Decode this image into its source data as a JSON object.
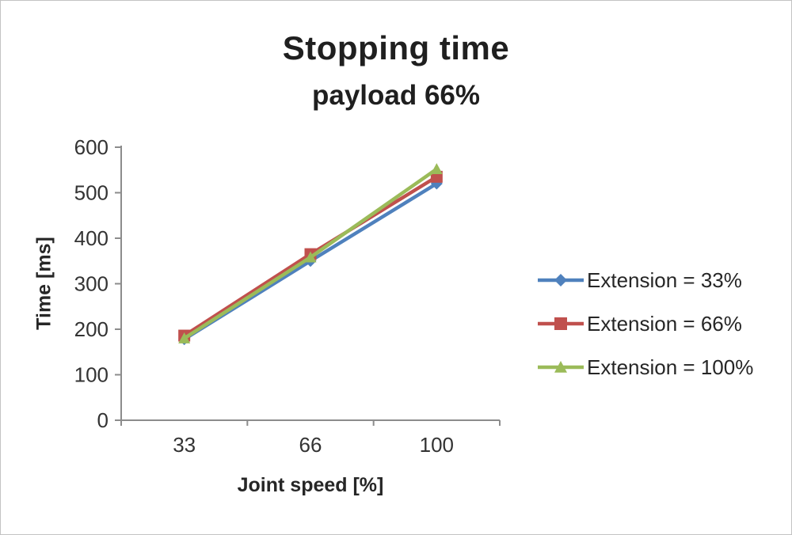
{
  "title": "Stopping time",
  "subtitle": "payload 66%",
  "colors": {
    "axis_line": "#8c8c8c",
    "tick_text": "#333333",
    "title_text": "#1f1f1f"
  },
  "chart_data": {
    "type": "line",
    "categories": [
      "33",
      "66",
      "100"
    ],
    "series": [
      {
        "name": "Extension = 33%",
        "color": "#4F81BD",
        "marker": "diamond",
        "values": [
          178,
          350,
          520
        ]
      },
      {
        "name": "Extension = 66%",
        "color": "#C0504D",
        "marker": "square",
        "values": [
          186,
          365,
          535
        ]
      },
      {
        "name": "Extension = 100%",
        "color": "#9BBB59",
        "marker": "triangle",
        "values": [
          180,
          358,
          552
        ]
      }
    ],
    "title": "Stopping time",
    "subtitle": "payload 66%",
    "xlabel": "Joint speed [%]",
    "ylabel": "Time [ms]",
    "ylim": [
      0,
      600
    ],
    "ytick_step": 100,
    "grid": false,
    "legend_position": "right"
  }
}
